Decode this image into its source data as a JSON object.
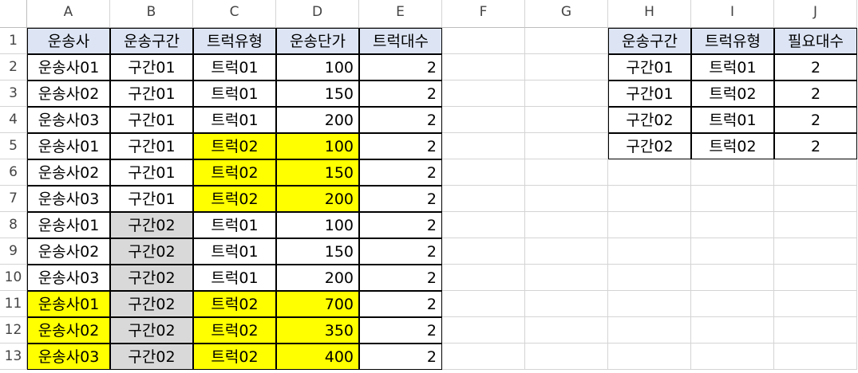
{
  "columns": [
    "A",
    "B",
    "C",
    "D",
    "E",
    "F",
    "G",
    "H",
    "I",
    "J"
  ],
  "rows": [
    "1",
    "2",
    "3",
    "4",
    "5",
    "6",
    "7",
    "8",
    "9",
    "10",
    "11",
    "12",
    "13"
  ],
  "table1": {
    "headers": [
      "운송사",
      "운송구간",
      "트럭유형",
      "운송단가",
      "트럭대수"
    ],
    "rows": [
      [
        "운송사01",
        "구간01",
        "트럭01",
        "100",
        "2"
      ],
      [
        "운송사02",
        "구간01",
        "트럭01",
        "150",
        "2"
      ],
      [
        "운송사03",
        "구간01",
        "트럭01",
        "200",
        "2"
      ],
      [
        "운송사01",
        "구간01",
        "트럭02",
        "100",
        "2"
      ],
      [
        "운송사02",
        "구간01",
        "트럭02",
        "150",
        "2"
      ],
      [
        "운송사03",
        "구간01",
        "트럭02",
        "200",
        "2"
      ],
      [
        "운송사01",
        "구간02",
        "트럭01",
        "100",
        "2"
      ],
      [
        "운송사02",
        "구간02",
        "트럭01",
        "150",
        "2"
      ],
      [
        "운송사03",
        "구간02",
        "트럭01",
        "200",
        "2"
      ],
      [
        "운송사01",
        "구간02",
        "트럭02",
        "700",
        "2"
      ],
      [
        "운송사02",
        "구간02",
        "트럭02",
        "350",
        "2"
      ],
      [
        "운송사03",
        "구간02",
        "트럭02",
        "400",
        "2"
      ]
    ],
    "highlights": [
      [
        "",
        "",
        "",
        "",
        ""
      ],
      [
        "",
        "",
        "",
        "",
        ""
      ],
      [
        "",
        "",
        "",
        "",
        ""
      ],
      [
        "",
        "",
        "yellow",
        "yellow",
        ""
      ],
      [
        "",
        "",
        "yellow",
        "yellow",
        ""
      ],
      [
        "",
        "",
        "yellow",
        "yellow",
        ""
      ],
      [
        "",
        "gray",
        "",
        "",
        ""
      ],
      [
        "",
        "gray",
        "",
        "",
        ""
      ],
      [
        "",
        "gray",
        "",
        "",
        ""
      ],
      [
        "yellow",
        "gray",
        "yellow",
        "yellow",
        ""
      ],
      [
        "yellow",
        "gray",
        "yellow",
        "yellow",
        ""
      ],
      [
        "yellow",
        "gray",
        "yellow",
        "yellow",
        ""
      ]
    ]
  },
  "table2": {
    "headers": [
      "운송구간",
      "트럭유형",
      "필요대수"
    ],
    "rows": [
      [
        "구간01",
        "트럭01",
        "2"
      ],
      [
        "구간01",
        "트럭02",
        "2"
      ],
      [
        "구간02",
        "트럭01",
        "2"
      ],
      [
        "구간02",
        "트럭02",
        "2"
      ]
    ]
  },
  "colors": {
    "header_fill": "#dde5f5",
    "yellow": "#ffff00",
    "gray": "#d9d9d9"
  }
}
